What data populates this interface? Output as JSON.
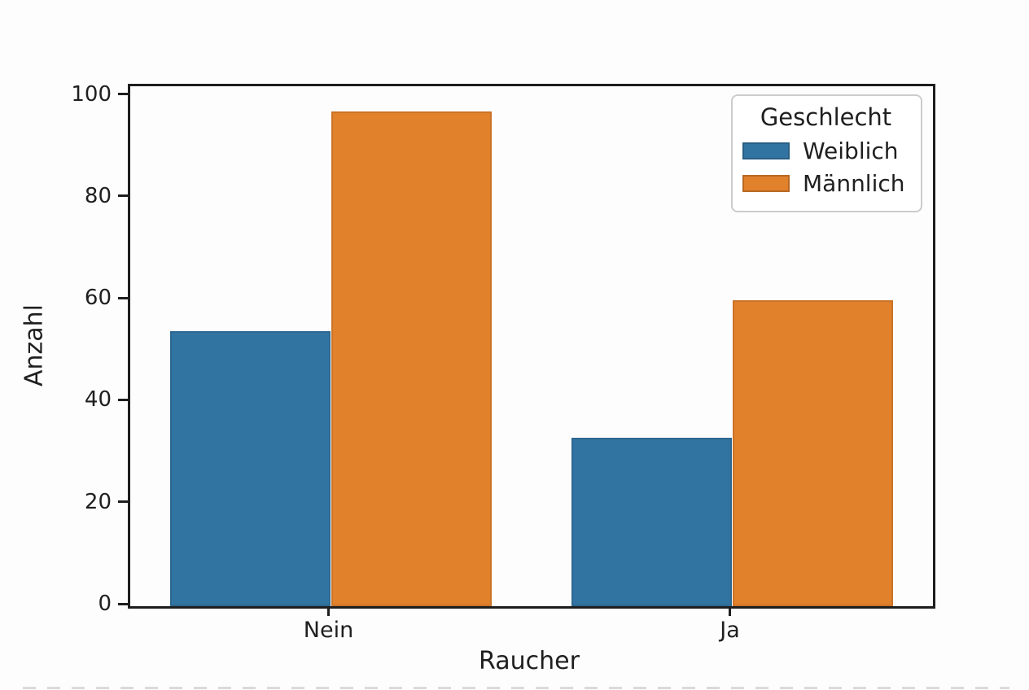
{
  "chart_data": {
    "type": "bar",
    "title": "",
    "categories": [
      "Nein",
      "Ja"
    ],
    "series": [
      {
        "name": "Weiblich",
        "color": "#3274a1",
        "values": [
          54,
          33
        ]
      },
      {
        "name": "Männlich",
        "color": "#e1812c",
        "values": [
          97,
          60
        ]
      }
    ],
    "xlabel": "Raucher",
    "ylabel": "Anzahl",
    "yticks": [
      0,
      20,
      40,
      60,
      80,
      100
    ],
    "ylim": [
      0,
      102
    ],
    "bar_group_width": 0.8,
    "grid": false,
    "legend": {
      "title": "Geschlecht",
      "position": "upper right"
    }
  },
  "colors": {
    "spine": "#1e1e1e",
    "text": "#1f1f1f",
    "legend_border": "#cccccc",
    "background": "#fdfdfd"
  }
}
